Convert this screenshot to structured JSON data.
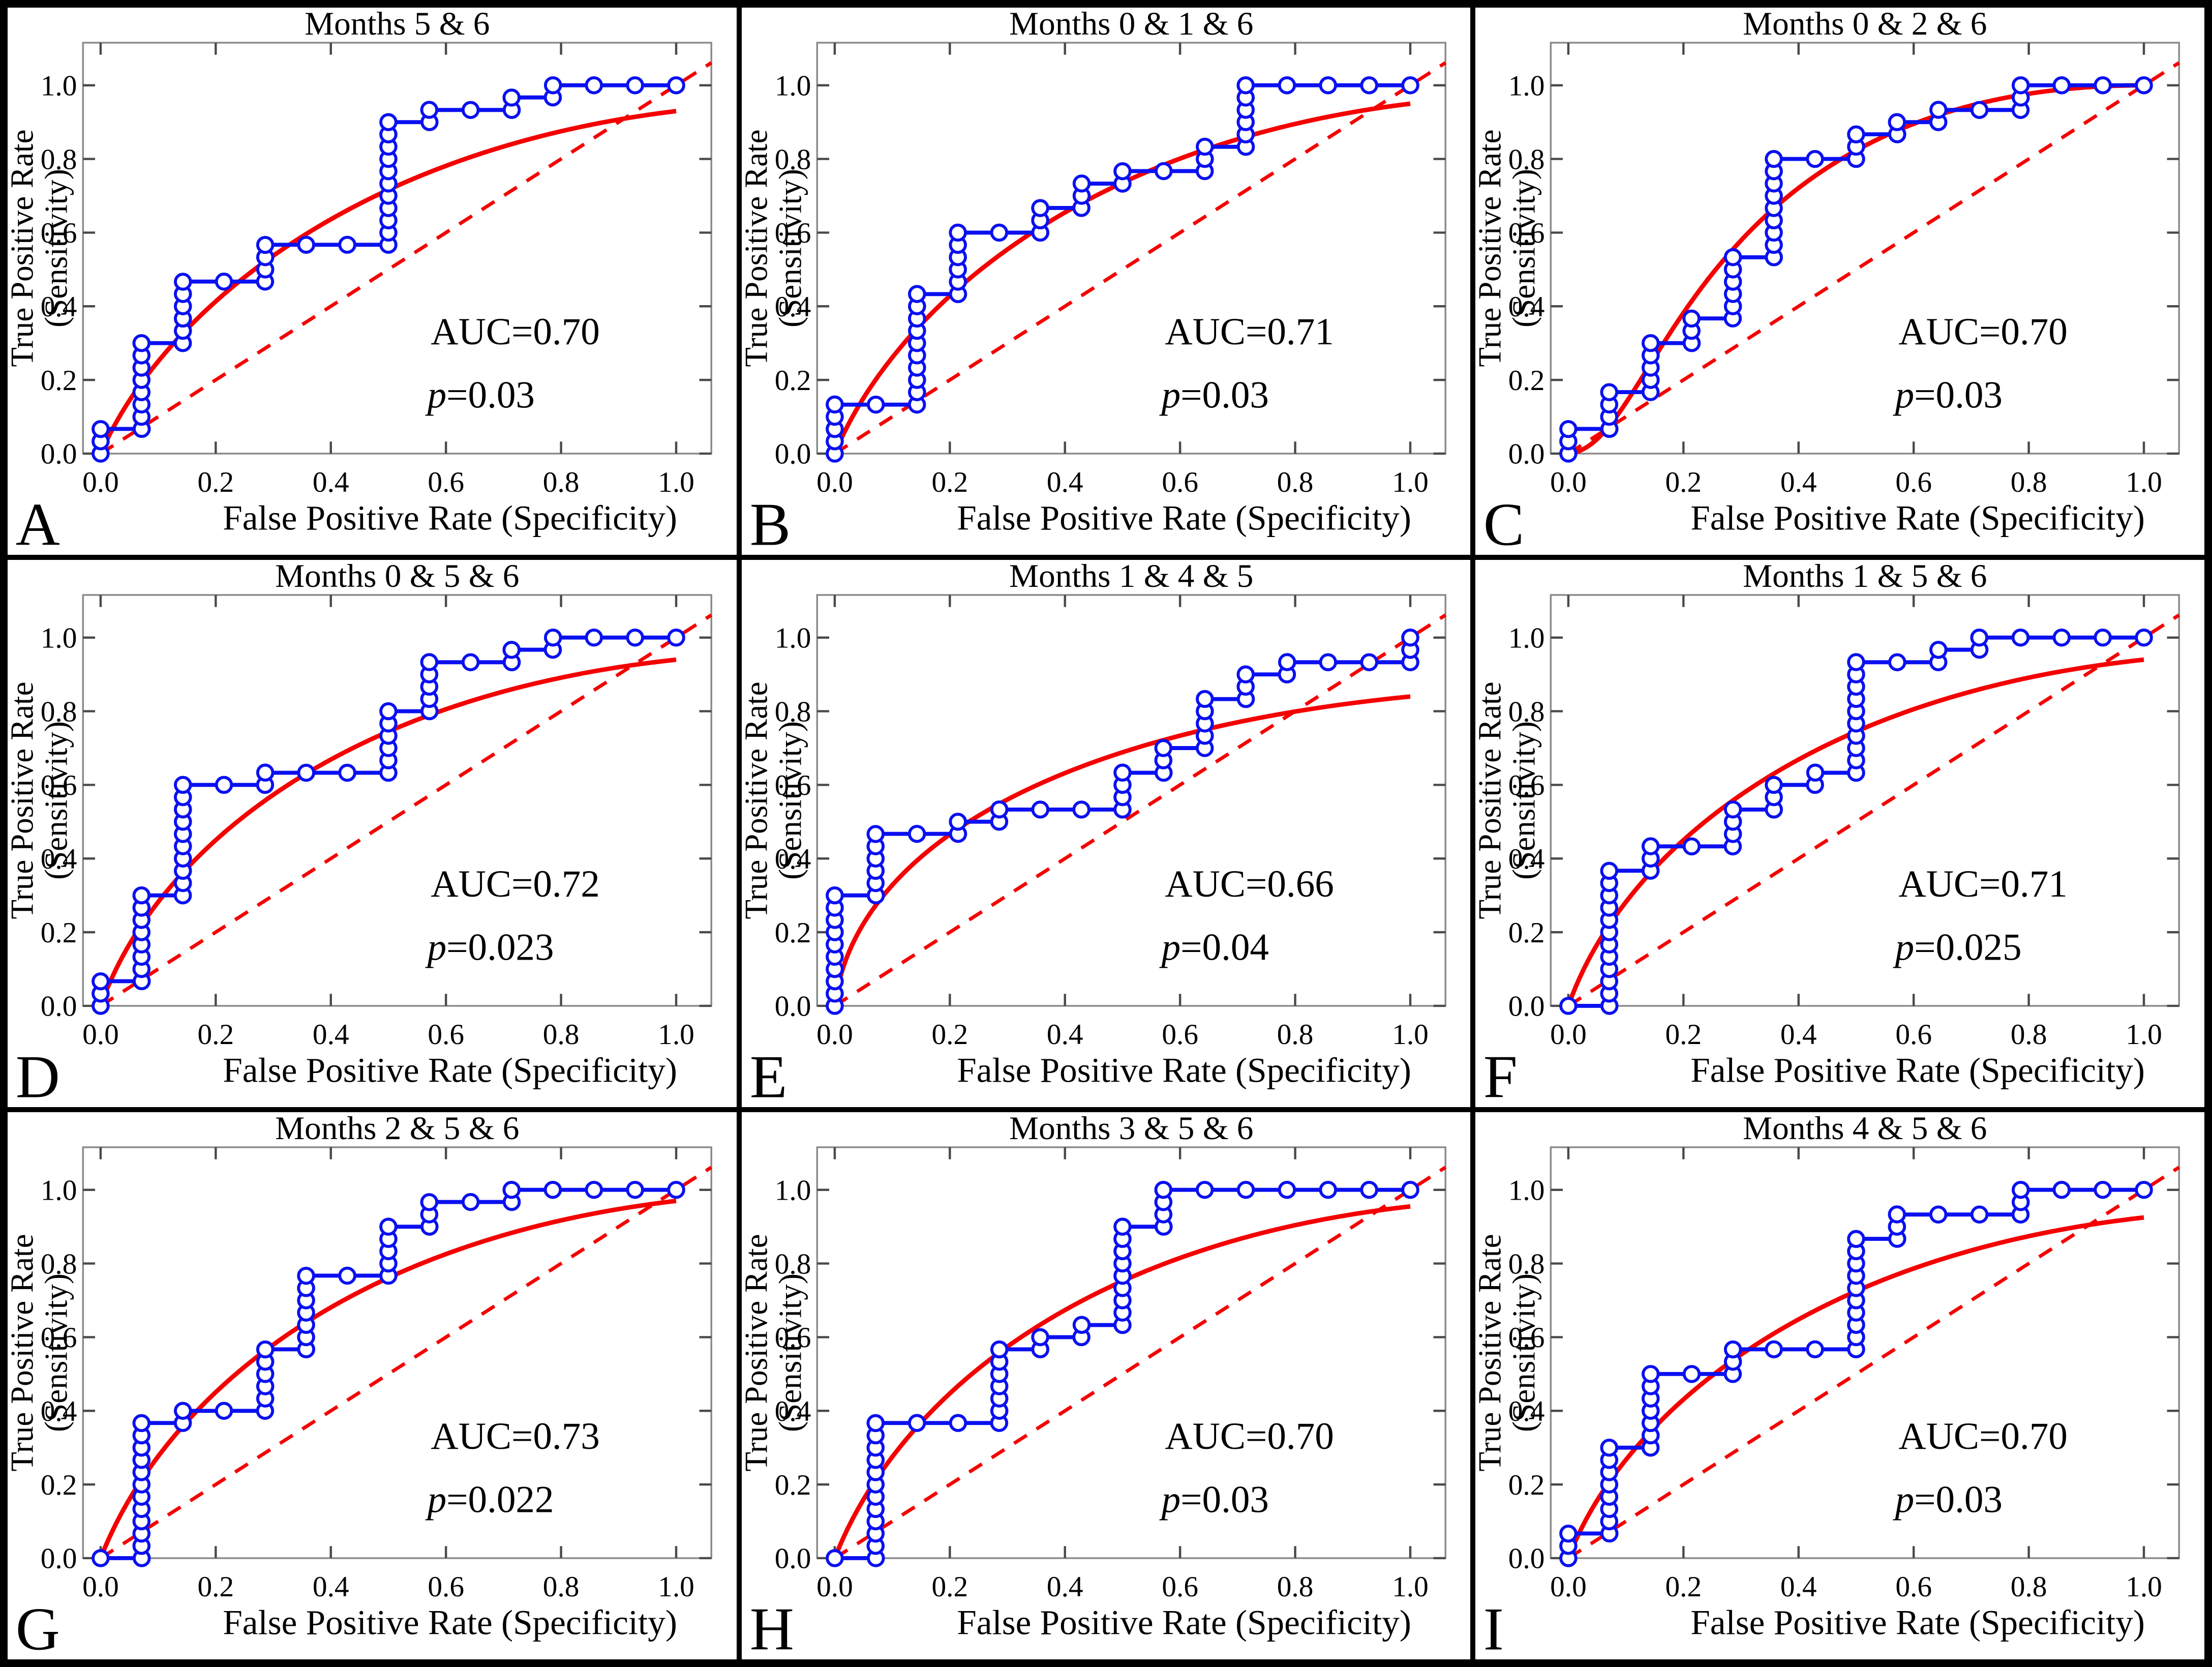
{
  "figure": {
    "xlabel": "False Positive Rate (Specificity)",
    "ylabel_line1": "True Positive Rate",
    "ylabel_line2": "(Sensitivity)",
    "x_ticks": [
      "0.0",
      "0.2",
      "0.4",
      "0.6",
      "0.8",
      "1.0"
    ],
    "y_ticks": [
      "0.0",
      "0.2",
      "0.4",
      "0.6",
      "0.8",
      "1.0"
    ],
    "colors": {
      "empirical_blue": "#0a10f0",
      "fitted_red": "#f40000",
      "chance_red_dashed": "#f40000",
      "frame_gray": "#8a8a8a",
      "tick_gray": "#4a4a4a",
      "marker_fill": "#ffffff",
      "text_black": "#000000"
    }
  },
  "chart_data": [
    {
      "type": "line",
      "label": "A",
      "title": "Months 5 & 6",
      "auc": 0.7,
      "p": 0.03,
      "auc_text": "AUC=0.70",
      "p_symbol": "p",
      "p_rest": "=0.03",
      "xlabel": "False Positive Rate (Specificity)",
      "ylabel": "True Positive Rate (Sensitivity)",
      "xlim": [
        0,
        1.06
      ],
      "ylim": [
        0,
        1.12
      ],
      "roc_points": [
        [
          0,
          0
        ],
        [
          0,
          0.067
        ],
        [
          0.071,
          0.067
        ],
        [
          0.071,
          0.3
        ],
        [
          0.143,
          0.3
        ],
        [
          0.143,
          0.467
        ],
        [
          0.286,
          0.467
        ],
        [
          0.286,
          0.567
        ],
        [
          0.5,
          0.567
        ],
        [
          0.5,
          0.9
        ],
        [
          0.571,
          0.9
        ],
        [
          0.571,
          0.933
        ],
        [
          0.714,
          0.933
        ],
        [
          0.714,
          0.967
        ],
        [
          0.786,
          0.967
        ],
        [
          0.786,
          1
        ],
        [
          1,
          1
        ]
      ],
      "fit": {
        "type": "bezier",
        "p1": [
          0.1,
          0.36
        ],
        "p2": [
          0.42,
          0.82
        ],
        "end": 0.93
      }
    },
    {
      "type": "line",
      "label": "B",
      "title": "Months 0 & 1 & 6",
      "auc": 0.71,
      "p": 0.03,
      "auc_text": "AUC=0.71",
      "p_symbol": "p",
      "p_rest": "=0.03",
      "xlabel": "False Positive Rate (Specificity)",
      "ylabel": "True Positive Rate (Sensitivity)",
      "xlim": [
        0,
        1.06
      ],
      "ylim": [
        0,
        1.12
      ],
      "roc_points": [
        [
          0,
          0
        ],
        [
          0,
          0.133
        ],
        [
          0.143,
          0.133
        ],
        [
          0.143,
          0.433
        ],
        [
          0.214,
          0.433
        ],
        [
          0.214,
          0.6
        ],
        [
          0.357,
          0.6
        ],
        [
          0.357,
          0.667
        ],
        [
          0.429,
          0.667
        ],
        [
          0.429,
          0.733
        ],
        [
          0.5,
          0.733
        ],
        [
          0.5,
          0.767
        ],
        [
          0.643,
          0.767
        ],
        [
          0.643,
          0.833
        ],
        [
          0.714,
          0.833
        ],
        [
          0.714,
          1
        ],
        [
          1,
          1
        ]
      ],
      "fit": {
        "type": "bezier",
        "p1": [
          0.1,
          0.38
        ],
        "p2": [
          0.42,
          0.84
        ],
        "end": 0.95
      }
    },
    {
      "type": "line",
      "label": "C",
      "title": "Months 0 & 2 & 6",
      "auc": 0.7,
      "p": 0.03,
      "auc_text": "AUC=0.70",
      "p_symbol": "p",
      "p_rest": "=0.03",
      "xlabel": "False Positive Rate (Specificity)",
      "ylabel": "True Positive Rate (Sensitivity)",
      "xlim": [
        0,
        1.06
      ],
      "ylim": [
        0,
        1.12
      ],
      "roc_points": [
        [
          0,
          0
        ],
        [
          0,
          0.067
        ],
        [
          0.071,
          0.067
        ],
        [
          0.071,
          0.167
        ],
        [
          0.143,
          0.167
        ],
        [
          0.143,
          0.3
        ],
        [
          0.214,
          0.3
        ],
        [
          0.214,
          0.367
        ],
        [
          0.286,
          0.367
        ],
        [
          0.286,
          0.533
        ],
        [
          0.357,
          0.533
        ],
        [
          0.357,
          0.8
        ],
        [
          0.5,
          0.8
        ],
        [
          0.5,
          0.867
        ],
        [
          0.571,
          0.867
        ],
        [
          0.571,
          0.9
        ],
        [
          0.643,
          0.9
        ],
        [
          0.643,
          0.933
        ],
        [
          0.786,
          0.933
        ],
        [
          0.786,
          1
        ],
        [
          1,
          1
        ]
      ],
      "fit": {
        "type": "bezier",
        "p1": [
          0.16,
          0.02
        ],
        "p2": [
          0.2,
          1.0
        ],
        "end": 1.0
      }
    },
    {
      "type": "line",
      "label": "D",
      "title": "Months 0 & 5 & 6",
      "auc": 0.72,
      "p": 0.023,
      "auc_text": "AUC=0.72",
      "p_symbol": "p",
      "p_rest": "=0.023",
      "xlabel": "False Positive Rate (Specificity)",
      "ylabel": "True Positive Rate (Sensitivity)",
      "xlim": [
        0,
        1.06
      ],
      "ylim": [
        0,
        1.12
      ],
      "roc_points": [
        [
          0,
          0
        ],
        [
          0,
          0.067
        ],
        [
          0.071,
          0.067
        ],
        [
          0.071,
          0.3
        ],
        [
          0.143,
          0.3
        ],
        [
          0.143,
          0.6
        ],
        [
          0.286,
          0.6
        ],
        [
          0.286,
          0.633
        ],
        [
          0.5,
          0.633
        ],
        [
          0.5,
          0.8
        ],
        [
          0.571,
          0.8
        ],
        [
          0.571,
          0.933
        ],
        [
          0.714,
          0.933
        ],
        [
          0.714,
          0.967
        ],
        [
          0.786,
          0.967
        ],
        [
          0.786,
          1
        ],
        [
          1,
          1
        ]
      ],
      "fit": {
        "type": "bezier",
        "p1": [
          0.09,
          0.4
        ],
        "p2": [
          0.4,
          0.84
        ],
        "end": 0.94
      }
    },
    {
      "type": "line",
      "label": "E",
      "title": "Months 1 & 4 & 5",
      "auc": 0.66,
      "p": 0.04,
      "auc_text": "AUC=0.66",
      "p_symbol": "p",
      "p_rest": "=0.04",
      "xlabel": "False Positive Rate (Specificity)",
      "ylabel": "True Positive Rate (Sensitivity)",
      "xlim": [
        0,
        1.06
      ],
      "ylim": [
        0,
        1.12
      ],
      "roc_points": [
        [
          0,
          0
        ],
        [
          0,
          0.3
        ],
        [
          0.071,
          0.3
        ],
        [
          0.071,
          0.467
        ],
        [
          0.214,
          0.467
        ],
        [
          0.214,
          0.5
        ],
        [
          0.286,
          0.5
        ],
        [
          0.286,
          0.533
        ],
        [
          0.5,
          0.533
        ],
        [
          0.5,
          0.633
        ],
        [
          0.571,
          0.633
        ],
        [
          0.571,
          0.7
        ],
        [
          0.643,
          0.7
        ],
        [
          0.643,
          0.833
        ],
        [
          0.714,
          0.833
        ],
        [
          0.714,
          0.9
        ],
        [
          0.786,
          0.9
        ],
        [
          0.786,
          0.933
        ],
        [
          1,
          0.933
        ],
        [
          1,
          1
        ]
      ],
      "fit": {
        "type": "bezier",
        "p1": [
          0.03,
          0.4
        ],
        "p2": [
          0.35,
          0.74
        ],
        "end": 0.84
      }
    },
    {
      "type": "line",
      "label": "F",
      "title": "Months 1 & 5 & 6",
      "auc": 0.71,
      "p": 0.025,
      "auc_text": "AUC=0.71",
      "p_symbol": "p",
      "p_rest": "=0.025",
      "xlabel": "False Positive Rate (Specificity)",
      "ylabel": "True Positive Rate (Sensitivity)",
      "xlim": [
        0,
        1.06
      ],
      "ylim": [
        0,
        1.12
      ],
      "roc_points": [
        [
          0,
          0
        ],
        [
          0.071,
          0
        ],
        [
          0.071,
          0.367
        ],
        [
          0.143,
          0.367
        ],
        [
          0.143,
          0.433
        ],
        [
          0.286,
          0.433
        ],
        [
          0.286,
          0.533
        ],
        [
          0.357,
          0.533
        ],
        [
          0.357,
          0.6
        ],
        [
          0.429,
          0.6
        ],
        [
          0.429,
          0.633
        ],
        [
          0.5,
          0.633
        ],
        [
          0.5,
          0.933
        ],
        [
          0.643,
          0.933
        ],
        [
          0.643,
          0.967
        ],
        [
          0.714,
          0.967
        ],
        [
          0.714,
          1
        ],
        [
          1,
          1
        ]
      ],
      "fit": {
        "type": "bezier",
        "p1": [
          0.09,
          0.4
        ],
        "p2": [
          0.4,
          0.84
        ],
        "end": 0.94
      }
    },
    {
      "type": "line",
      "label": "G",
      "title": "Months 2 & 5 & 6",
      "auc": 0.73,
      "p": 0.022,
      "auc_text": "AUC=0.73",
      "p_symbol": "p",
      "p_rest": "=0.022",
      "xlabel": "False Positive Rate (Specificity)",
      "ylabel": "True Positive Rate (Sensitivity)",
      "xlim": [
        0,
        1.06
      ],
      "ylim": [
        0,
        1.12
      ],
      "roc_points": [
        [
          0,
          0
        ],
        [
          0.071,
          0
        ],
        [
          0.071,
          0.367
        ],
        [
          0.143,
          0.367
        ],
        [
          0.143,
          0.4
        ],
        [
          0.286,
          0.4
        ],
        [
          0.286,
          0.567
        ],
        [
          0.357,
          0.567
        ],
        [
          0.357,
          0.767
        ],
        [
          0.5,
          0.767
        ],
        [
          0.5,
          0.9
        ],
        [
          0.571,
          0.9
        ],
        [
          0.571,
          0.967
        ],
        [
          0.714,
          0.967
        ],
        [
          0.714,
          1
        ],
        [
          1,
          1
        ]
      ],
      "fit": {
        "type": "bezier",
        "p1": [
          0.1,
          0.4
        ],
        "p2": [
          0.4,
          0.86
        ],
        "end": 0.97
      }
    },
    {
      "type": "line",
      "label": "H",
      "title": "Months 3 & 5 & 6",
      "auc": 0.7,
      "p": 0.03,
      "auc_text": "AUC=0.70",
      "p_symbol": "p",
      "p_rest": "=0.03",
      "xlabel": "False Positive Rate (Specificity)",
      "ylabel": "True Positive Rate (Sensitivity)",
      "xlim": [
        0,
        1.06
      ],
      "ylim": [
        0,
        1.12
      ],
      "roc_points": [
        [
          0,
          0
        ],
        [
          0.071,
          0
        ],
        [
          0.071,
          0.367
        ],
        [
          0.286,
          0.367
        ],
        [
          0.286,
          0.567
        ],
        [
          0.357,
          0.567
        ],
        [
          0.357,
          0.6
        ],
        [
          0.429,
          0.6
        ],
        [
          0.429,
          0.633
        ],
        [
          0.5,
          0.633
        ],
        [
          0.5,
          0.9
        ],
        [
          0.571,
          0.9
        ],
        [
          0.571,
          1
        ],
        [
          1,
          1
        ]
      ],
      "fit": {
        "type": "bezier",
        "p1": [
          0.1,
          0.4
        ],
        "p2": [
          0.4,
          0.85
        ],
        "end": 0.955
      }
    },
    {
      "type": "line",
      "label": "I",
      "title": "Months 4 & 5 & 6",
      "auc": 0.7,
      "p": 0.03,
      "auc_text": "AUC=0.70",
      "p_symbol": "p",
      "p_rest": "=0.03",
      "xlabel": "False Positive Rate (Specificity)",
      "ylabel": "True Positive Rate (Sensitivity)",
      "xlim": [
        0,
        1.06
      ],
      "ylim": [
        0,
        1.12
      ],
      "roc_points": [
        [
          0,
          0
        ],
        [
          0,
          0.067
        ],
        [
          0.071,
          0.067
        ],
        [
          0.071,
          0.3
        ],
        [
          0.143,
          0.3
        ],
        [
          0.143,
          0.5
        ],
        [
          0.286,
          0.5
        ],
        [
          0.286,
          0.567
        ],
        [
          0.5,
          0.567
        ],
        [
          0.5,
          0.867
        ],
        [
          0.571,
          0.867
        ],
        [
          0.571,
          0.933
        ],
        [
          0.786,
          0.933
        ],
        [
          0.786,
          1
        ],
        [
          1,
          1
        ]
      ],
      "fit": {
        "type": "bezier",
        "p1": [
          0.09,
          0.37
        ],
        "p2": [
          0.4,
          0.82
        ],
        "end": 0.925
      }
    }
  ]
}
